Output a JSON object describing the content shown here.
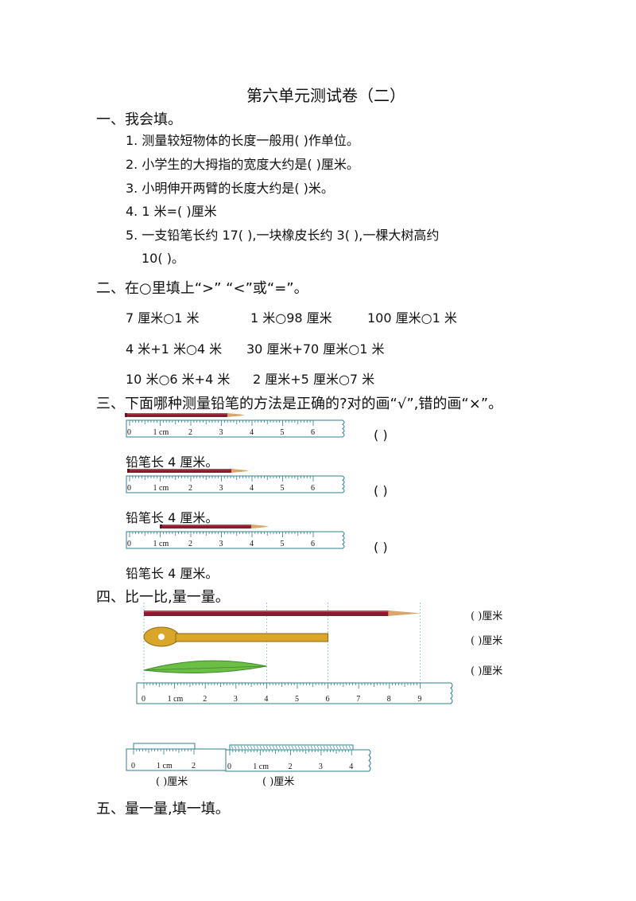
{
  "title": "第六单元测试卷（二）",
  "s1": {
    "heading": "一、我会填。",
    "q1": "1.  测量较短物体的长度一般用(        )作单位。",
    "q2": "2.  小学生的大拇指的宽度大约是(        )厘米。",
    "q3": "3.  小明伸开两臂的长度大约是(        )米。",
    "q4": "4.  1 米=(        )厘米",
    "q5a": "5.  一支铅笔长约 17(        ),一块橡皮长约 3(        ),一棵大树高约",
    "q5b": "10(        )。"
  },
  "s2": {
    "heading": "二、在○里填上“>”  “<”或“=”。",
    "r1": [
      "7 厘米○1 米",
      "1 米○98 厘米",
      "100 厘米○1 米"
    ],
    "r2": [
      "4 米+1 米○4 米",
      "30 厘米+70 厘米○1 米"
    ],
    "r3": [
      "10 米○6 米+4 米",
      "2 厘米+5 厘米○7 米"
    ]
  },
  "s3": {
    "heading": "三、下面哪种测量铅笔的方法是正确的?对的画“√”,错的画“×”。",
    "caption": "铅笔长 4 厘米。",
    "answer": "(        )"
  },
  "s4": {
    "heading": "四、比一比,量一量。",
    "ans": "(        )厘米",
    "ans_small": "(        )厘米"
  },
  "s5": {
    "heading": "五、量一量,填一填。"
  },
  "ruler": {
    "labels6": [
      "0",
      "1 cm",
      "2",
      "3",
      "4",
      "5",
      "6"
    ],
    "labels9": [
      "0",
      "1 cm",
      "2",
      "3",
      "4",
      "5",
      "6",
      "7",
      "8",
      "9"
    ],
    "labels2": [
      "0",
      "1 cm",
      "2"
    ],
    "labels4": [
      "0",
      "1 cm",
      "2",
      "3",
      "4"
    ]
  },
  "colors": {
    "pencil": "#8b1a2e",
    "key": "#d9a62a",
    "leaf": "#6cbf45",
    "ruler": "#2f7f8f"
  }
}
